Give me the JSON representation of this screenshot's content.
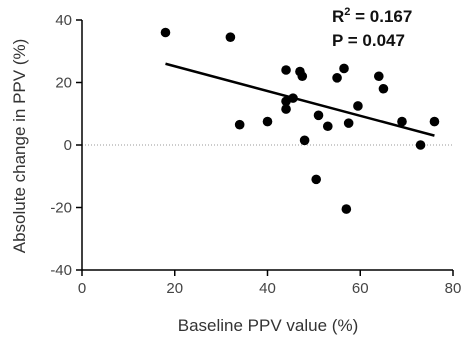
{
  "chart_data": {
    "type": "scatter",
    "title": "",
    "xlabel": "Baseline PPV value (%)",
    "ylabel": "Absolute change in PPV (%)",
    "xlim": [
      0,
      80
    ],
    "ylim": [
      -40,
      40
    ],
    "xticks": [
      "0",
      "20",
      "40",
      "60",
      "80"
    ],
    "yticks": [
      "40",
      "20",
      "0",
      "-20",
      "-40"
    ],
    "grid": false,
    "zero_reference_line": "dotted",
    "point_color": "#000000",
    "line_color": "#000000",
    "points": [
      {
        "x": 18,
        "y": 36
      },
      {
        "x": 32,
        "y": 34.5
      },
      {
        "x": 34,
        "y": 6.5
      },
      {
        "x": 40,
        "y": 7.5
      },
      {
        "x": 44,
        "y": 24
      },
      {
        "x": 44,
        "y": 14
      },
      {
        "x": 44,
        "y": 11.5
      },
      {
        "x": 45.5,
        "y": 15
      },
      {
        "x": 47,
        "y": 23.5
      },
      {
        "x": 47.5,
        "y": 22
      },
      {
        "x": 48,
        "y": 1.5
      },
      {
        "x": 50.5,
        "y": -11
      },
      {
        "x": 51,
        "y": 9.5
      },
      {
        "x": 53,
        "y": 6
      },
      {
        "x": 55,
        "y": 21.5
      },
      {
        "x": 56.5,
        "y": 24.5
      },
      {
        "x": 57,
        "y": -20.5
      },
      {
        "x": 57.5,
        "y": 7
      },
      {
        "x": 59.5,
        "y": 12.5
      },
      {
        "x": 64,
        "y": 22
      },
      {
        "x": 65,
        "y": 18
      },
      {
        "x": 69,
        "y": 7.5
      },
      {
        "x": 73,
        "y": 0
      },
      {
        "x": 76,
        "y": 7.5
      }
    ],
    "regression_line": {
      "x1": 18,
      "y1": 26,
      "x2": 76,
      "y2": 3
    },
    "annotations": {
      "r_squared_label": "R",
      "r_squared_sup": "2",
      "r_squared_value": " = 0.167",
      "p_value_text": "P = 0.047"
    }
  }
}
